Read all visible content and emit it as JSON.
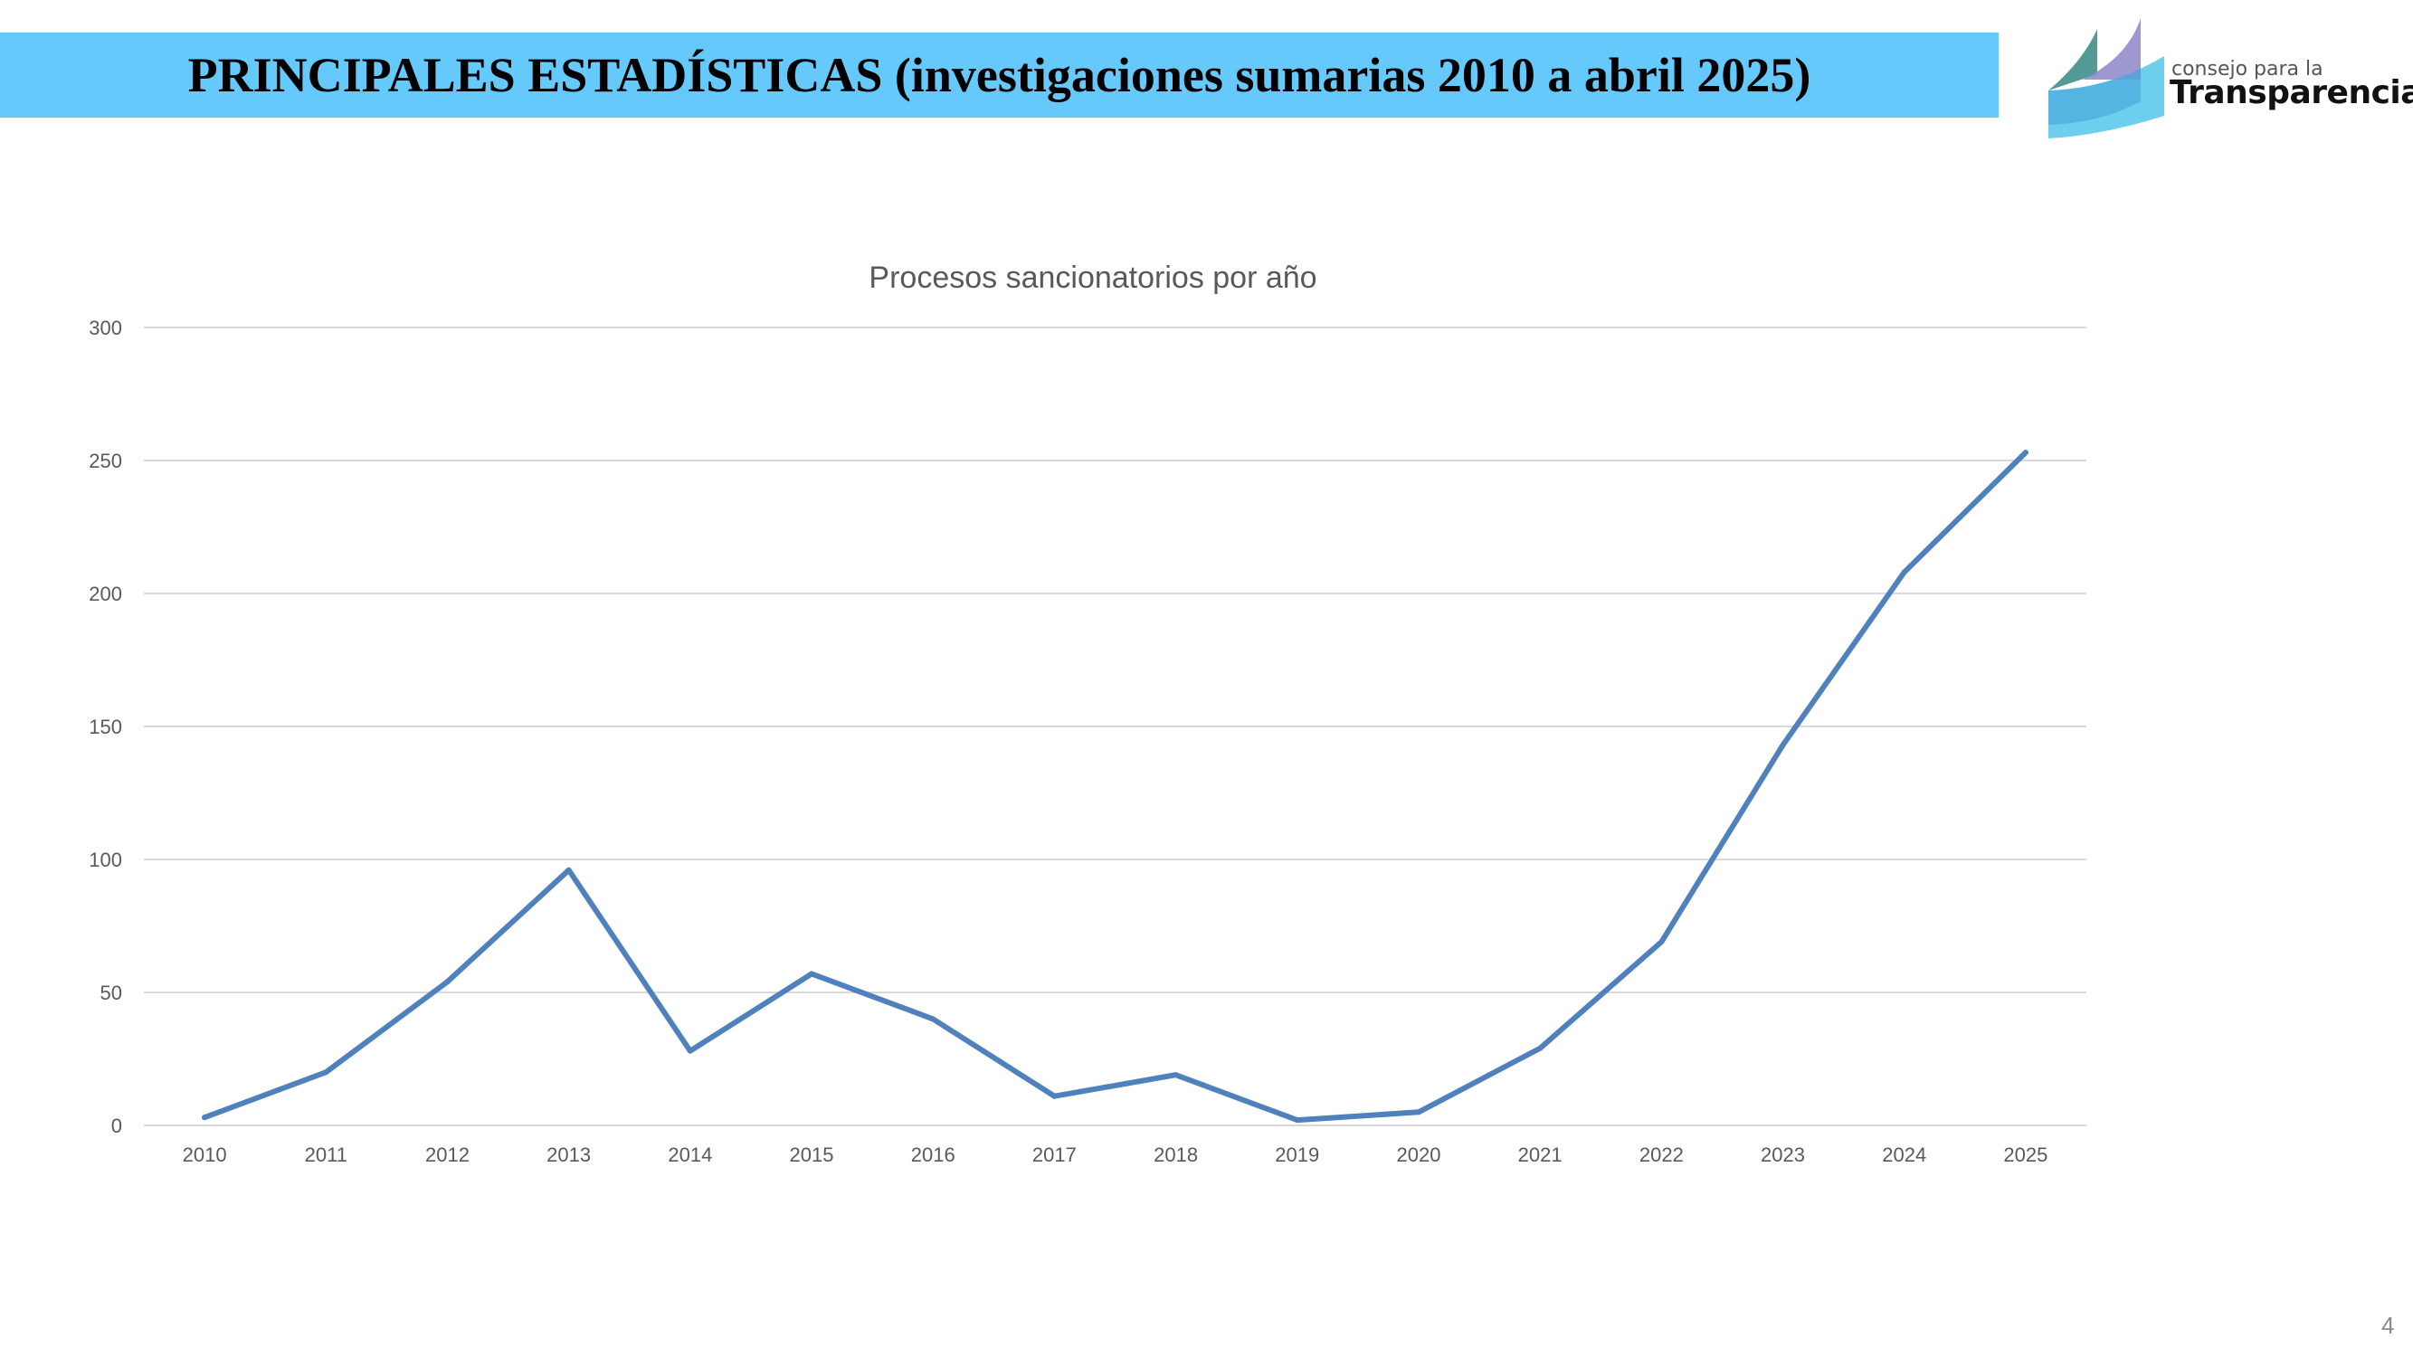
{
  "header": {
    "title": "PRINCIPALES ESTADÍSTICAS (investigaciones sumarias 2010 a abril 2025)"
  },
  "logo": {
    "line1": "consejo para la",
    "line2": "Transparencia"
  },
  "page_number": "4",
  "colors": {
    "header_bg": "#66c9fc",
    "series": "#4f81bd",
    "grid": "#d9d9d9",
    "text": "#595959"
  },
  "chart_data": {
    "type": "line",
    "title": "Procesos sancionatorios por año",
    "xlabel": "",
    "ylabel": "",
    "categories": [
      "2010",
      "2011",
      "2012",
      "2013",
      "2014",
      "2015",
      "2016",
      "2017",
      "2018",
      "2019",
      "2020",
      "2021",
      "2022",
      "2023",
      "2024",
      "2025"
    ],
    "series": [
      {
        "name": "Procesos sancionatorios",
        "values": [
          3,
          20,
          54,
          96,
          28,
          57,
          40,
          11,
          19,
          2,
          5,
          29,
          69,
          143,
          208,
          253
        ]
      }
    ],
    "ylim": [
      0,
      300
    ],
    "yticks": [
      "0",
      "50",
      "100",
      "150",
      "200",
      "250",
      "300"
    ],
    "grid": true,
    "legend": "none"
  }
}
